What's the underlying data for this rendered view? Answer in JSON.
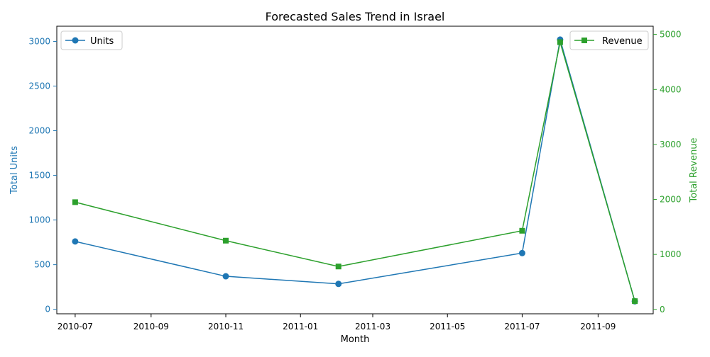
{
  "chart_data": {
    "type": "line",
    "title": "Forecasted Sales Trend in Israel",
    "xlabel": "Month",
    "ylabel_left": "Total Units",
    "ylabel_right": "Total Revenue",
    "x_tick_labels": [
      "2010-07",
      "2010-09",
      "2010-11",
      "2011-01",
      "2011-03",
      "2011-05",
      "2011-07",
      "2011-09"
    ],
    "y_left_ticks": [
      0,
      500,
      1000,
      1500,
      2000,
      2500,
      3000
    ],
    "y_right_ticks": [
      0,
      1000,
      2000,
      3000,
      4000,
      5000
    ],
    "y_left_lim": [
      -50,
      3170
    ],
    "y_right_lim": [
      -80,
      5150
    ],
    "x_range": [
      "2010-06-16",
      "2011-10-16"
    ],
    "x": [
      "2010-07-01",
      "2010-11-01",
      "2011-02-01",
      "2011-07-01",
      "2011-08-01",
      "2011-10-01"
    ],
    "series": [
      {
        "name": "Units",
        "axis": "left",
        "color": "#1f77b4",
        "marker": "circle",
        "values": [
          760,
          370,
          285,
          630,
          3020,
          90
        ]
      },
      {
        "name": "Revenue",
        "axis": "right",
        "color": "#2ca02c",
        "marker": "square",
        "values": [
          1950,
          1250,
          780,
          1430,
          4860,
          150
        ]
      }
    ],
    "grid": false,
    "legend": {
      "left": "upper-left",
      "right": "upper-right"
    }
  }
}
